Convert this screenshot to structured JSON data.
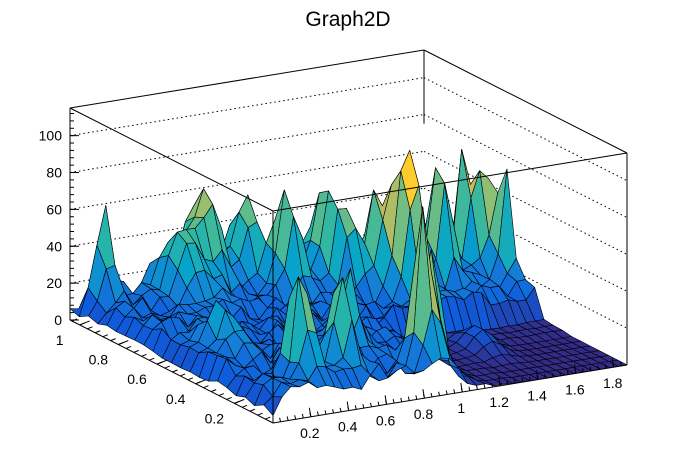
{
  "chart_data": {
    "type": "surface3d",
    "title": "Graph2D",
    "xlim": [
      0,
      1.87
    ],
    "ylim": [
      0,
      1.05
    ],
    "zlim": [
      0,
      115
    ],
    "x_ticks": [
      "0.2",
      "0.4",
      "0.6",
      "0.8",
      "1",
      "1.2",
      "1.4",
      "1.6",
      "1.8"
    ],
    "x_tick_values": [
      0.2,
      0.4,
      0.6,
      0.8,
      1.0,
      1.2,
      1.4,
      1.6,
      1.8
    ],
    "y_ticks": [
      "0.2",
      "0.4",
      "0.6",
      "0.8",
      "1"
    ],
    "y_tick_values": [
      0.2,
      0.4,
      0.6,
      0.8,
      1.0
    ],
    "z_ticks": [
      "0",
      "20",
      "40",
      "60",
      "80",
      "100"
    ],
    "z_tick_values": [
      0,
      20,
      40,
      60,
      80,
      100
    ],
    "grid": "dotted z-gridlines on back walls",
    "palette": [
      "#352a87",
      "#0f5cdd",
      "#1481d6",
      "#06a4ca",
      "#2eb7a4",
      "#87bf77",
      "#d1bb59",
      "#fec832",
      "#f9fb0e"
    ],
    "base_level": 10,
    "peaks": [
      {
        "x": 0.13,
        "y": 1.0,
        "z": 45,
        "w": 0.035
      },
      {
        "x": 0.61,
        "y": 0.95,
        "z": 50,
        "w": 0.06
      },
      {
        "x": 0.45,
        "y": 0.9,
        "z": 38,
        "w": 0.07
      },
      {
        "x": 0.82,
        "y": 0.95,
        "z": 44,
        "w": 0.05
      },
      {
        "x": 0.9,
        "y": 0.8,
        "z": 58,
        "w": 0.045
      },
      {
        "x": 1.12,
        "y": 0.85,
        "z": 46,
        "w": 0.045
      },
      {
        "x": 1.15,
        "y": 0.75,
        "z": 42,
        "w": 0.04
      },
      {
        "x": 1.28,
        "y": 0.7,
        "z": 54,
        "w": 0.045
      },
      {
        "x": 1.34,
        "y": 0.6,
        "z": 85,
        "w": 0.04
      },
      {
        "x": 1.6,
        "y": 0.7,
        "z": 67,
        "w": 0.04
      },
      {
        "x": 1.78,
        "y": 0.75,
        "z": 62,
        "w": 0.035
      },
      {
        "x": 1.85,
        "y": 0.73,
        "z": 65,
        "w": 0.03
      },
      {
        "x": 1.87,
        "y": 0.63,
        "z": 59,
        "w": 0.03
      },
      {
        "x": 0.9,
        "y": 0.1,
        "z": 84,
        "w": 0.035
      },
      {
        "x": 1.0,
        "y": 0.15,
        "z": 65,
        "w": 0.03
      },
      {
        "x": 0.3,
        "y": 0.15,
        "z": 59,
        "w": 0.04
      },
      {
        "x": 0.51,
        "y": 0.15,
        "z": 50,
        "w": 0.04
      },
      {
        "x": 0.7,
        "y": 0.3,
        "z": 40,
        "w": 0.04
      },
      {
        "x": 0.2,
        "y": 0.45,
        "z": 22,
        "w": 0.05
      },
      {
        "x": 1.4,
        "y": 0.3,
        "z": 12,
        "w": 0.06
      }
    ]
  }
}
